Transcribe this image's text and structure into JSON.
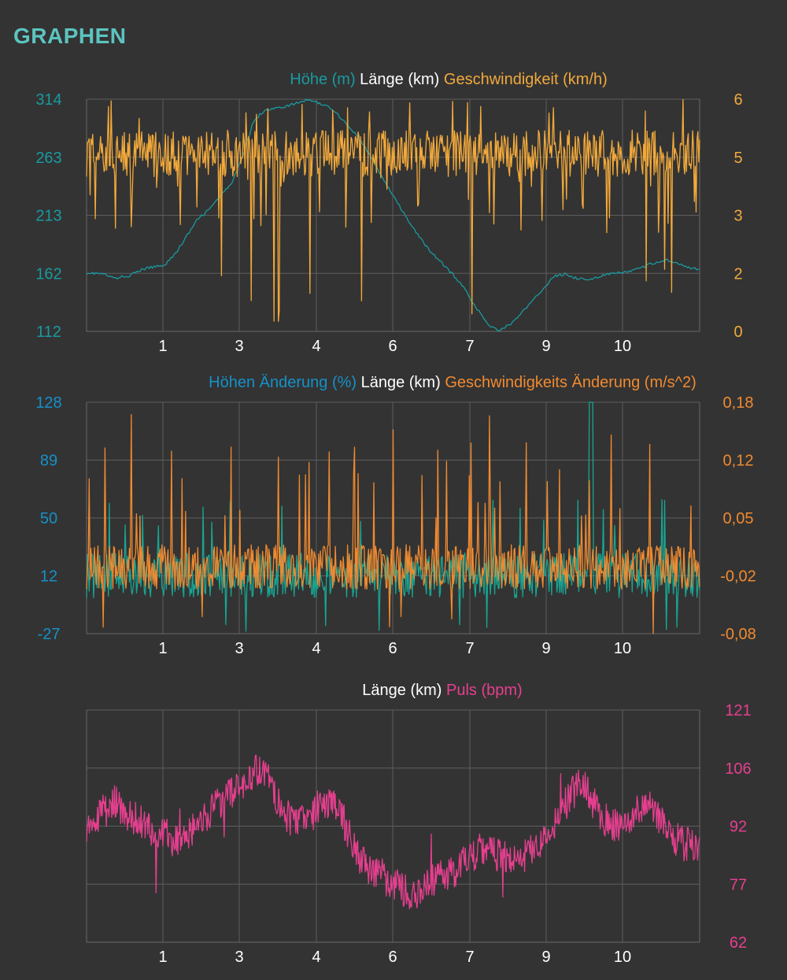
{
  "page": {
    "title": "GRAPHEN"
  },
  "colors": {
    "background": "#333333",
    "title": "#5cc4bf",
    "grid": "#5e5e5e",
    "axis_text": "#ffffff",
    "elevation": "#1a9aa0",
    "speed": "#f2a93b",
    "elev_change": "#1591c9",
    "elev_change_line": "#18a593",
    "speed_change": "#f08a30",
    "pulse": "#e63f8f"
  },
  "chart_data": [
    {
      "type": "line",
      "legend": [
        "Höhe (m)",
        "Länge (km)",
        "Geschwindigkeit (km/h)"
      ],
      "x_ticks": [
        "1",
        "3",
        "4",
        "6",
        "7",
        "9",
        "10"
      ],
      "y_left_ticks": [
        "314",
        "263",
        "213",
        "162",
        "112"
      ],
      "y_right_ticks": [
        "6",
        "5",
        "3",
        "2",
        "0"
      ],
      "xlim": [
        0,
        11
      ],
      "ylim_left": [
        112,
        314
      ],
      "ylim_right": [
        0,
        6
      ],
      "series": [
        {
          "name": "Höhe (m)",
          "axis": "left",
          "x": [
            0,
            0.3,
            0.5,
            0.8,
            1.0,
            1.2,
            1.4,
            1.6,
            1.8,
            2.0,
            2.2,
            2.4,
            2.6,
            2.8,
            3.0,
            3.2,
            3.4,
            3.6,
            3.8,
            4.0,
            4.2,
            4.4,
            4.6,
            4.8,
            5.0,
            5.2,
            5.4,
            5.6,
            5.8,
            6.0,
            6.2,
            6.4,
            6.6,
            6.8,
            7.0,
            7.2,
            7.4,
            7.6,
            7.8,
            8.0,
            8.2,
            8.4,
            8.6,
            8.8,
            9.0,
            9.2,
            9.4,
            9.6,
            9.8,
            10.0,
            10.2,
            10.4,
            10.6,
            10.8,
            11.0
          ],
          "values": [
            163,
            162,
            158,
            161,
            166,
            168,
            170,
            180,
            195,
            210,
            218,
            230,
            240,
            265,
            295,
            305,
            306,
            308,
            311,
            314,
            310,
            306,
            296,
            285,
            272,
            255,
            238,
            222,
            206,
            192,
            180,
            170,
            160,
            148,
            132,
            118,
            113,
            118,
            128,
            138,
            150,
            160,
            162,
            158,
            157,
            160,
            162,
            163,
            165,
            168,
            172,
            174,
            172,
            168,
            165
          ]
        },
        {
          "name": "Geschwindigkeit (km/h)",
          "axis": "right",
          "generator": "speed"
        }
      ]
    },
    {
      "type": "line",
      "legend": [
        "Höhen Änderung (%)",
        "Länge (km)",
        "Geschwindigkeits Änderung (m/s^2)"
      ],
      "x_ticks": [
        "1",
        "3",
        "4",
        "6",
        "7",
        "9",
        "10"
      ],
      "y_left_ticks": [
        "128",
        "89",
        "50",
        "12",
        "-27"
      ],
      "y_right_ticks": [
        "0,18",
        "0,12",
        "0,05",
        "-0,02",
        "-0,08"
      ],
      "xlim": [
        0,
        11
      ],
      "ylim_left": [
        -27,
        128
      ],
      "ylim_right": [
        -0.08,
        0.18
      ],
      "series": [
        {
          "name": "Höhen Änderung (%)",
          "axis": "left",
          "generator": "grade"
        },
        {
          "name": "Geschwindigkeits Änderung (m/s^2)",
          "axis": "right",
          "generator": "accel"
        }
      ]
    },
    {
      "type": "line",
      "legend": [
        "Länge (km)",
        "Puls (bpm)"
      ],
      "x_ticks": [
        "1",
        "3",
        "4",
        "6",
        "7",
        "9",
        "10"
      ],
      "y_right_ticks": [
        "121",
        "106",
        "92",
        "77",
        "62"
      ],
      "xlim": [
        0,
        11
      ],
      "ylim_right": [
        62,
        121
      ],
      "series": [
        {
          "name": "Puls (bpm)",
          "axis": "right",
          "x": [
            0,
            0.3,
            0.5,
            0.8,
            1.0,
            1.3,
            1.6,
            2.0,
            2.3,
            2.6,
            2.9,
            3.1,
            3.3,
            3.6,
            3.9,
            4.2,
            4.5,
            4.7,
            5.0,
            5.3,
            5.6,
            5.9,
            6.2,
            6.5,
            6.8,
            7.1,
            7.4,
            7.7,
            8.0,
            8.3,
            8.6,
            8.9,
            9.2,
            9.5,
            9.8,
            10.1,
            10.4,
            10.7,
            11.0
          ],
          "values": [
            92,
            95,
            98,
            94,
            92,
            90,
            88,
            92,
            96,
            100,
            104,
            106,
            102,
            94,
            92,
            97,
            96,
            90,
            81,
            79,
            76,
            74,
            78,
            79,
            83,
            86,
            84,
            82,
            86,
            90,
            97,
            104,
            94,
            92,
            94,
            97,
            90,
            87,
            86
          ]
        }
      ]
    }
  ]
}
